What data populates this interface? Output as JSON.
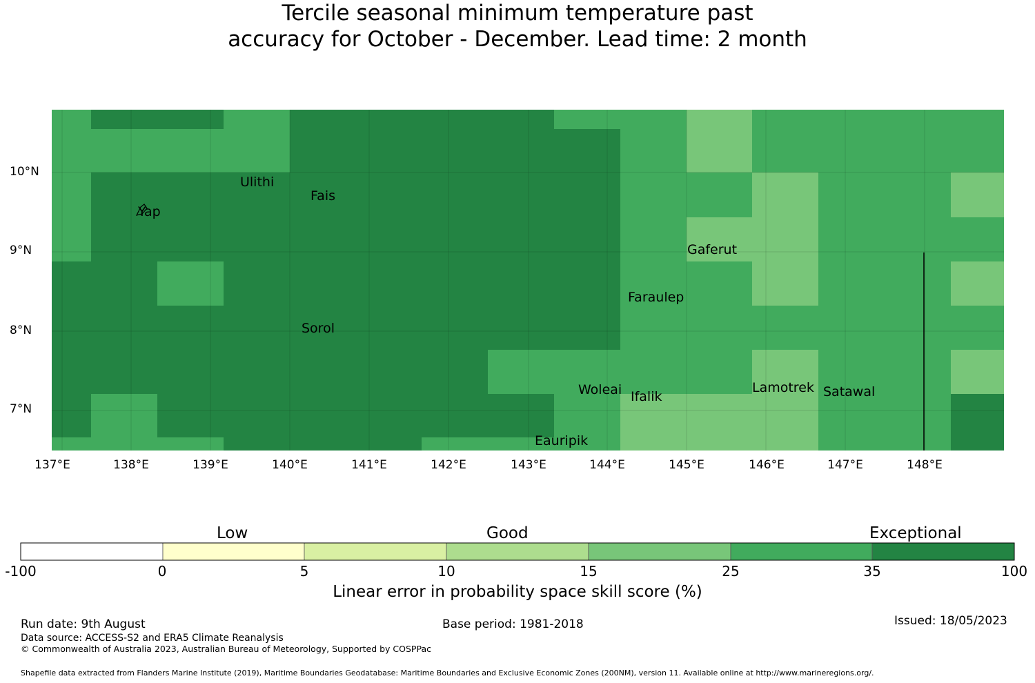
{
  "title": {
    "line1": "Tercile seasonal minimum temperature past",
    "line2": "accuracy for October - December. Lead time: 2 month"
  },
  "map": {
    "lat_labels": [
      "10°N",
      "9°N",
      "8°N",
      "7°N"
    ],
    "lon_labels": [
      "137°E",
      "138°E",
      "139°E",
      "140°E",
      "141°E",
      "142°E",
      "143°E",
      "144°E",
      "145°E",
      "146°E",
      "147°E",
      "148°E"
    ],
    "places": [
      "Yap",
      "Ulithi",
      "Fais",
      "Gaferut",
      "Faraulep",
      "Sorol",
      "Woleai",
      "Ifalik",
      "Lamotrek",
      "Satawal",
      "Eauripik"
    ],
    "boundary_note": "vertical EEZ line near 148°E"
  },
  "colorbar": {
    "categories": [
      "Low",
      "Good",
      "Exceptional"
    ],
    "ticks": [
      "-100",
      "0",
      "5",
      "10",
      "15",
      "25",
      "35",
      "100"
    ],
    "colors": [
      "#ffffff",
      "#ffffcc",
      "#d9f0a3",
      "#addd8e",
      "#78c679",
      "#41ab5d",
      "#238443"
    ],
    "label": "Linear error in probability space skill score (%)"
  },
  "footer": {
    "run_date": "Run date: 9th August",
    "base_period": "Base period: 1981-2018",
    "issued": "Issued: 18/05/2023",
    "data_source": "Data source: ACCESS-S2 and ERA5 Climate Reanalysis",
    "copyright": "© Commonwealth of Australia 2023, Australian Bureau of Meteorology, Supported by COSPPac",
    "shapefile": "Shapefile data extracted from Flanders Marine Institute (2019), Maritime Boundaries Geodatabase: Maritime Boundaries and Exclusive Economic Zones (200NM), version 11. Available online at http://www.marineregions.org/."
  }
}
